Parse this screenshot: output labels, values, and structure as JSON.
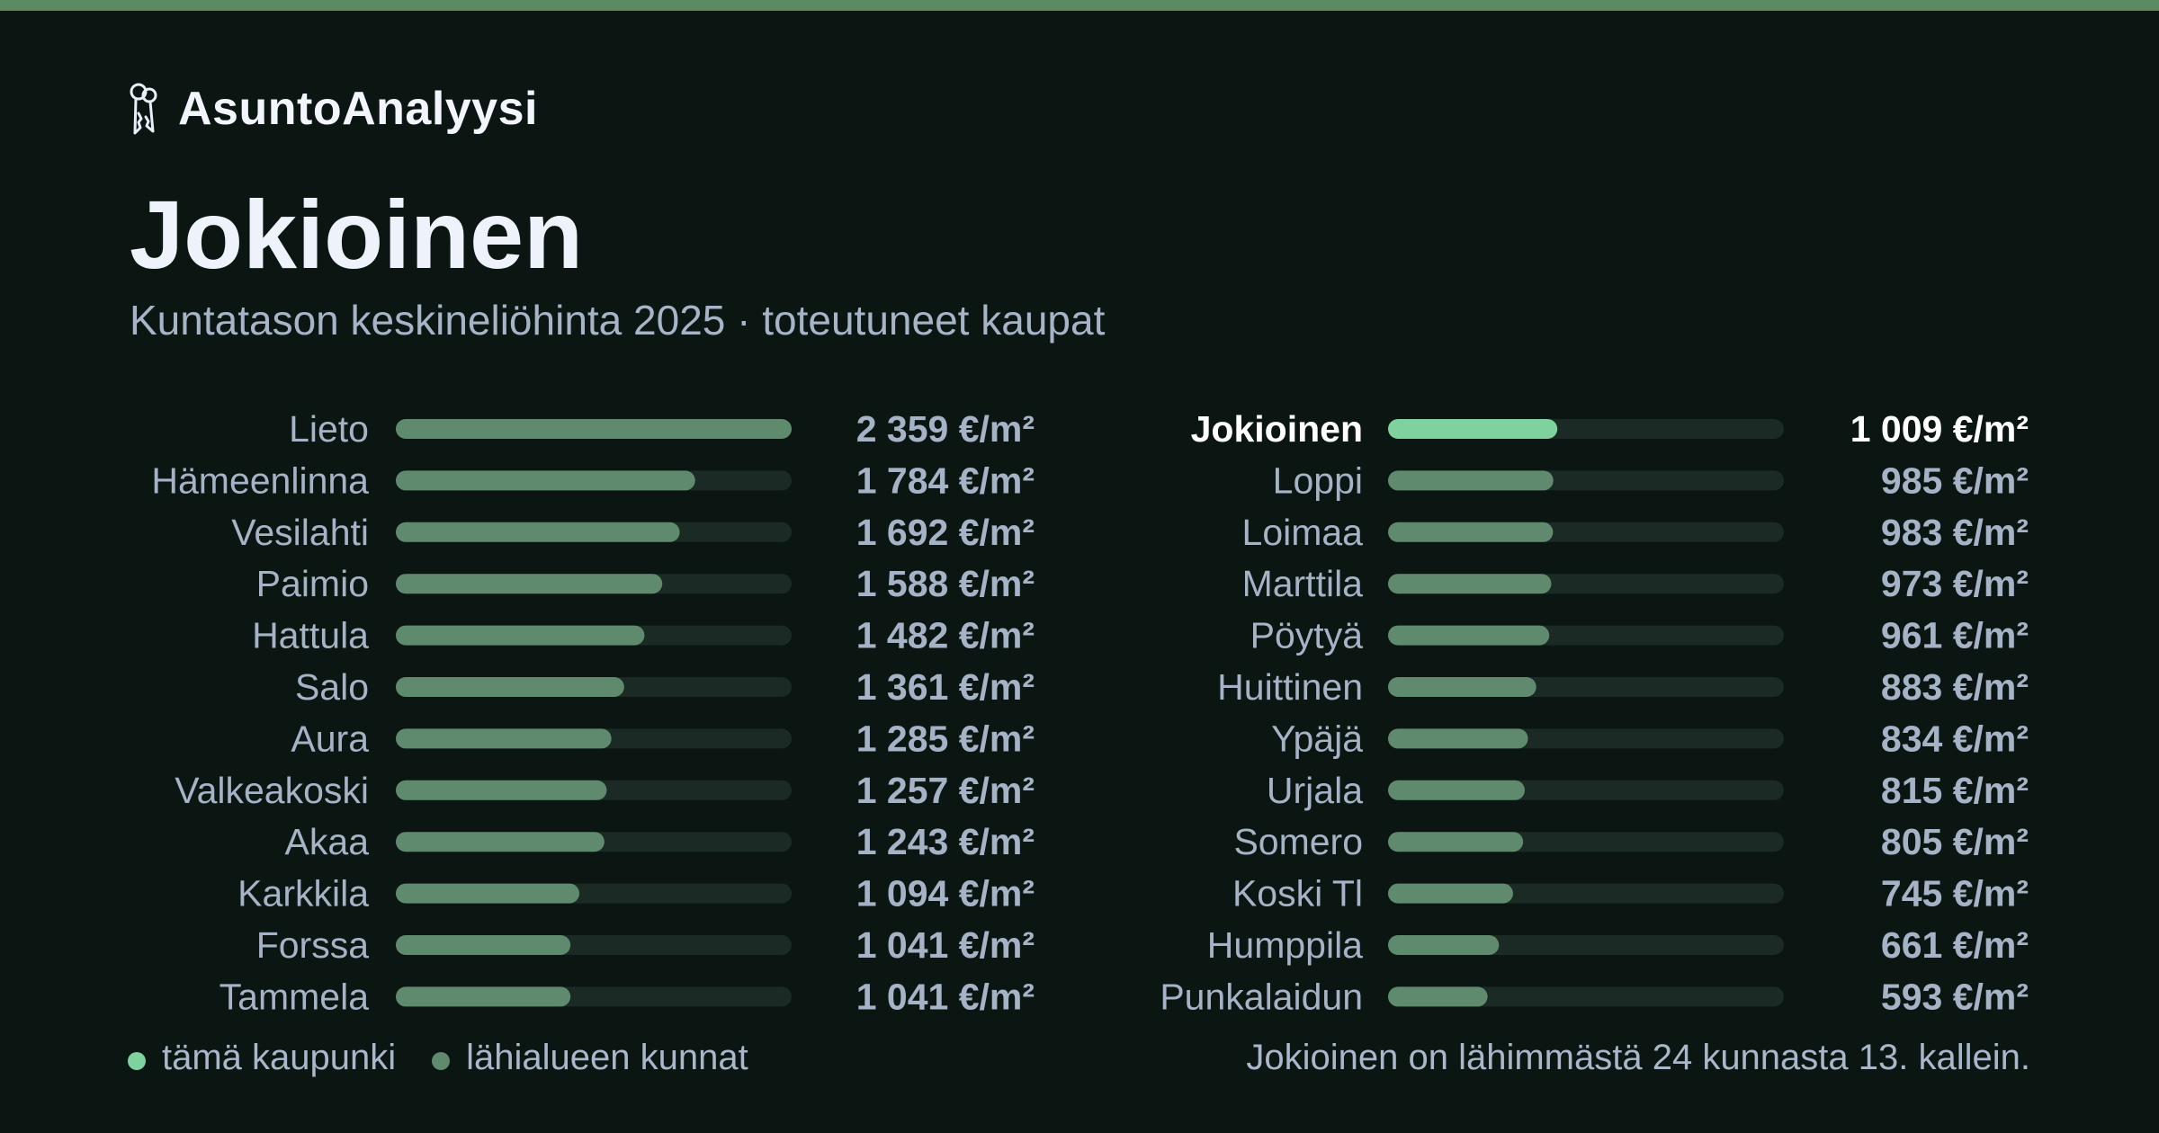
{
  "brand": {
    "name": "AsuntoAnalyysi",
    "icon": "keys-icon"
  },
  "header": {
    "title": "Jokioinen",
    "subtitle": "Kuntatason keskineliöhinta 2025 · toteutuneet kaupat"
  },
  "colors": {
    "background": "#0b1613",
    "stripe": "#5c8b63",
    "highlight_bar": "#7fd19e",
    "neighbor_bar": "#5f8a6e",
    "track": "#1b2a25",
    "label": "#a6b2c5",
    "value": "#a6b2c5",
    "highlight_text": "#ffffff"
  },
  "chart_data": {
    "type": "bar",
    "orientation": "horizontal",
    "max_value": 2359,
    "unit_suffix": " €/m²",
    "highlight": "Jokioinen",
    "columns": [
      {
        "rows": [
          {
            "name": "Lieto",
            "value": 2359,
            "label": "2 359 €/m²"
          },
          {
            "name": "Hämeenlinna",
            "value": 1784,
            "label": "1 784 €/m²"
          },
          {
            "name": "Vesilahti",
            "value": 1692,
            "label": "1 692 €/m²"
          },
          {
            "name": "Paimio",
            "value": 1588,
            "label": "1 588 €/m²"
          },
          {
            "name": "Hattula",
            "value": 1482,
            "label": "1 482 €/m²"
          },
          {
            "name": "Salo",
            "value": 1361,
            "label": "1 361 €/m²"
          },
          {
            "name": "Aura",
            "value": 1285,
            "label": "1 285 €/m²"
          },
          {
            "name": "Valkeakoski",
            "value": 1257,
            "label": "1 257 €/m²"
          },
          {
            "name": "Akaa",
            "value": 1243,
            "label": "1 243 €/m²"
          },
          {
            "name": "Karkkila",
            "value": 1094,
            "label": "1 094 €/m²"
          },
          {
            "name": "Forssa",
            "value": 1041,
            "label": "1 041 €/m²"
          },
          {
            "name": "Tammela",
            "value": 1041,
            "label": "1 041 €/m²"
          }
        ]
      },
      {
        "rows": [
          {
            "name": "Jokioinen",
            "value": 1009,
            "label": "1 009 €/m²",
            "highlight": true
          },
          {
            "name": "Loppi",
            "value": 985,
            "label": "985 €/m²"
          },
          {
            "name": "Loimaa",
            "value": 983,
            "label": "983 €/m²"
          },
          {
            "name": "Marttila",
            "value": 973,
            "label": "973 €/m²"
          },
          {
            "name": "Pöytyä",
            "value": 961,
            "label": "961 €/m²"
          },
          {
            "name": "Huittinen",
            "value": 883,
            "label": "883 €/m²"
          },
          {
            "name": "Ypäjä",
            "value": 834,
            "label": "834 €/m²"
          },
          {
            "name": "Urjala",
            "value": 815,
            "label": "815 €/m²"
          },
          {
            "name": "Somero",
            "value": 805,
            "label": "805 €/m²"
          },
          {
            "name": "Koski Tl",
            "value": 745,
            "label": "745 €/m²"
          },
          {
            "name": "Humppila",
            "value": 661,
            "label": "661 €/m²"
          },
          {
            "name": "Punkalaidun",
            "value": 593,
            "label": "593 €/m²"
          }
        ]
      }
    ]
  },
  "legend": {
    "this_city": "tämä kaupunki",
    "neighbors": "lähialueen kunnat"
  },
  "footnote": "Jokioinen on lähimmästä 24 kunnasta 13. kallein."
}
